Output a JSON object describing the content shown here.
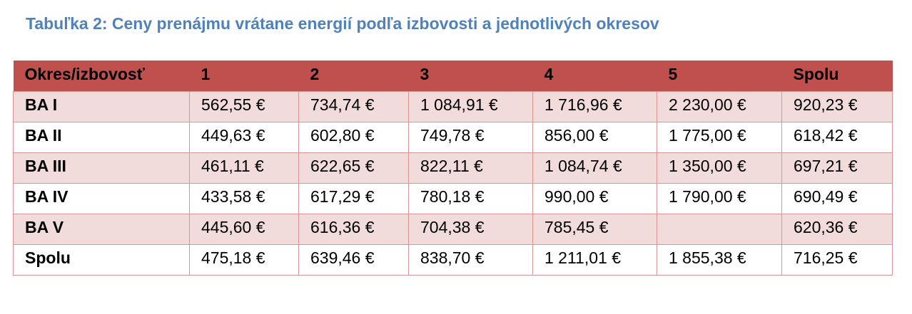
{
  "header": {
    "title": "Tabuľka 2: Ceny prenájmu vrátane energií podľa izbovosti a jednotlivých okresov"
  },
  "table": {
    "columns": [
      "Okres/izbovosť",
      "1",
      "2",
      "3",
      "4",
      "5",
      "Spolu"
    ],
    "rows": [
      [
        "BA I",
        "562,55 €",
        "734,74 €",
        "1 084,91 €",
        "1 716,96 €",
        "2 230,00 €",
        "920,23 €"
      ],
      [
        "BA II",
        "449,63 €",
        "602,80 €",
        "749,78 €",
        "856,00 €",
        "1 775,00 €",
        "618,42 €"
      ],
      [
        "BA III",
        "461,11 €",
        "622,65 €",
        "822,11 €",
        "1 084,74 €",
        "1 350,00 €",
        "697,21 €"
      ],
      [
        "BA IV",
        "433,58 €",
        "617,29 €",
        "780,18 €",
        "990,00 €",
        "1 790,00 €",
        "690,49 €"
      ],
      [
        "BA V",
        "445,60 €",
        "616,36 €",
        "704,38 €",
        "785,45 €",
        null,
        "620,36 €"
      ],
      [
        "Spolu",
        "475,18 €",
        "639,46 €",
        "838,70 €",
        "1 211,01 €",
        "1 855,38 €",
        "716,25 €"
      ]
    ]
  }
}
